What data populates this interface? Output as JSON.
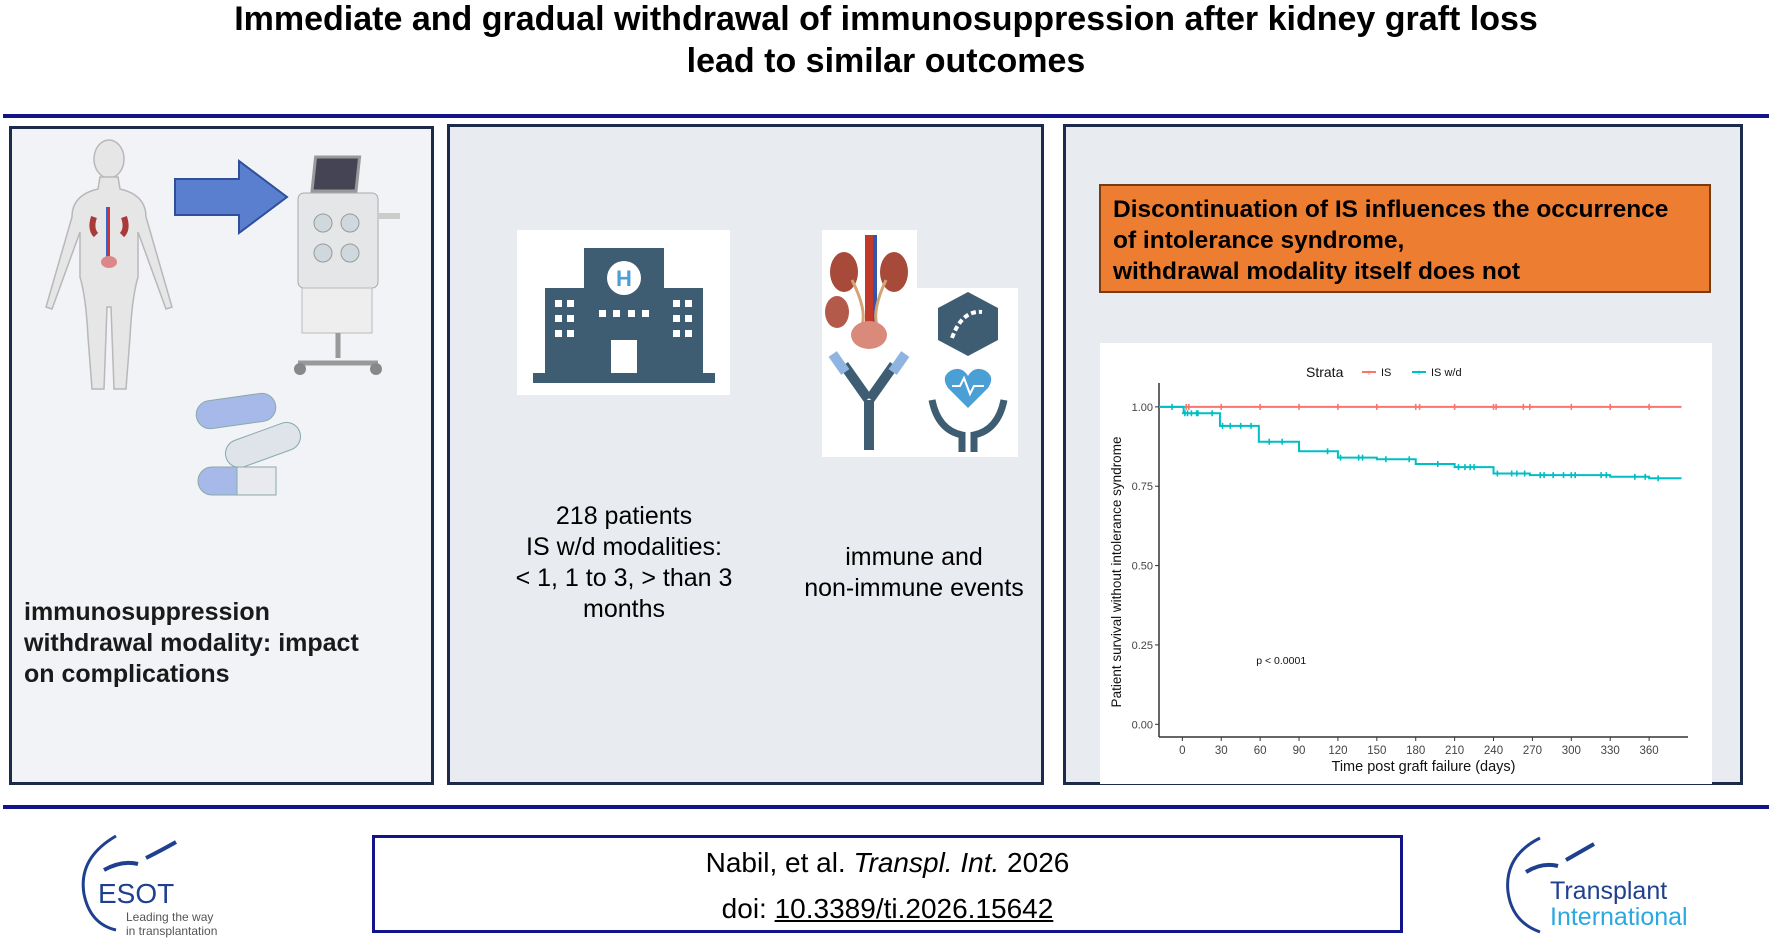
{
  "title": {
    "line1": "Immediate and gradual withdrawal of immunosuppression after kidney graft loss",
    "line2": "lead to similar outcomes"
  },
  "panel1": {
    "text": "immunosuppression withdrawal modality: impact on complications",
    "icons": [
      "woman-kidney-icon",
      "arrow-right-icon",
      "dialysis-machine-icon",
      "pills-icon"
    ],
    "arrow_color": "#5b7fcf"
  },
  "panel2": {
    "cohort_lines": [
      "218 patients",
      "IS  w/d modalities:",
      "< 1, 1 to 3, > than 3",
      "months"
    ],
    "events_lines": [
      "immune and",
      "non-immune events"
    ],
    "icons": [
      "hospital-icon",
      "kidney-organs-icon",
      "virus-icon",
      "antibody-icon",
      "heart-hands-icon"
    ],
    "hospital_color": "#3e5d73"
  },
  "panel3": {
    "finding_lines": [
      "Discontinuation of IS influences the occurrence",
      "of intolerance syndrome,",
      "withdrawal modality itself  does not"
    ],
    "finding_color": "#ed7d31"
  },
  "chart_data": {
    "type": "line",
    "subtype": "kaplan-meier",
    "legend": {
      "title": "Strata",
      "position": "top"
    },
    "xlabel": "Time post graft failure (days)",
    "ylabel": "Patient survival without intolerance syndrome",
    "xticks": [
      0,
      30,
      60,
      90,
      120,
      150,
      180,
      210,
      240,
      270,
      300,
      330,
      360
    ],
    "yticks": [
      "0.00",
      "0.25",
      "0.50",
      "0.75",
      "1.00"
    ],
    "xlim": [
      -18,
      390
    ],
    "ylim": [
      -0.04,
      1.05
    ],
    "grid": false,
    "annotation": "p < 0.0001",
    "series": [
      {
        "name": "IS",
        "color": "#f8766d",
        "steps": [
          [
            0,
            1.0
          ],
          [
            385,
            1.0
          ]
        ],
        "censors": [
          3,
          5,
          30,
          60,
          90,
          120,
          150,
          180,
          183,
          210,
          240,
          242,
          263,
          268,
          300,
          330,
          360
        ]
      },
      {
        "name": "IS w/d",
        "color": "#00bfc4",
        "steps": [
          [
            0,
            1.0
          ],
          [
            1,
            0.98
          ],
          [
            29,
            0.94
          ],
          [
            59,
            0.89
          ],
          [
            90,
            0.86
          ],
          [
            120,
            0.84
          ],
          [
            150,
            0.835
          ],
          [
            180,
            0.82
          ],
          [
            210,
            0.81
          ],
          [
            240,
            0.79
          ],
          [
            268,
            0.785
          ],
          [
            330,
            0.78
          ],
          [
            360,
            0.775
          ],
          [
            385,
            0.775
          ]
        ],
        "censors": [
          -8,
          2,
          4,
          7,
          11,
          12,
          23,
          31,
          37,
          45,
          53,
          67,
          77,
          112,
          122,
          136,
          139,
          157,
          175,
          197,
          213,
          218,
          222,
          225,
          243,
          254,
          258,
          264,
          276,
          279,
          286,
          294,
          300,
          303,
          323,
          327,
          349,
          357,
          367
        ]
      }
    ]
  },
  "footer": {
    "citation_prefix": "Nabil, et al. ",
    "citation_journal": "Transpl. Int.",
    "citation_year": " 2026",
    "doi_label": "doi: ",
    "doi": "10.3389/ti.2026.15642",
    "esot_logo": {
      "name": "ESOT",
      "tagline1": "Leading the way",
      "tagline2": "in transplantation"
    },
    "ti_logo": {
      "line1": "Transplant",
      "line2": "International"
    },
    "rule_color": "#14148a"
  }
}
